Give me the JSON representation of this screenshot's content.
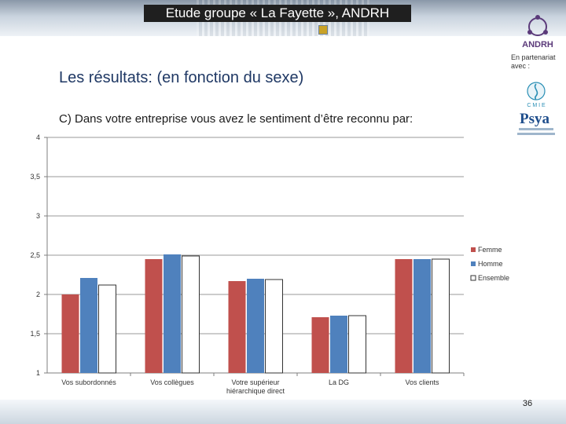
{
  "header": {
    "title": "Etude groupe « La Fayette », ANDRH"
  },
  "slide": {
    "subtitle": "Les résultats: (en fonction du sexe)",
    "question": "C) Dans votre entreprise vous avez le sentiment d’être reconnu par:",
    "partner_text": "En partenariat avec :",
    "page_number": "36"
  },
  "logos": {
    "andrh": {
      "text": "ANDRH",
      "icon": "andrh-logo"
    },
    "psya": {
      "cmie": "C M I E",
      "name": "Psya",
      "icon": "psya-logo"
    }
  },
  "chart_data": {
    "type": "bar",
    "categories": [
      "Vos subordonnés",
      "Vos collègues",
      [
        "Votre supérieur",
        "hiérarchique direct"
      ],
      "La DG",
      "Vos clients"
    ],
    "series": [
      {
        "name": "Femme",
        "color": "#c0504d",
        "values": [
          2.0,
          2.45,
          2.17,
          1.71,
          2.45
        ]
      },
      {
        "name": "Homme",
        "color": "#4f81bd",
        "values": [
          2.21,
          2.51,
          2.2,
          1.73,
          2.45
        ]
      },
      {
        "name": "Ensemble",
        "color": "#ffffff",
        "values": [
          2.12,
          2.49,
          2.19,
          1.73,
          2.45
        ]
      }
    ],
    "ylim": [
      1,
      4
    ],
    "yticks": [
      "1",
      "1,5",
      "2",
      "2,5",
      "3",
      "3,5",
      "4"
    ],
    "ytick_values": [
      1,
      1.5,
      2,
      2.5,
      3,
      3.5,
      4
    ],
    "grid": true,
    "legend": "right"
  }
}
